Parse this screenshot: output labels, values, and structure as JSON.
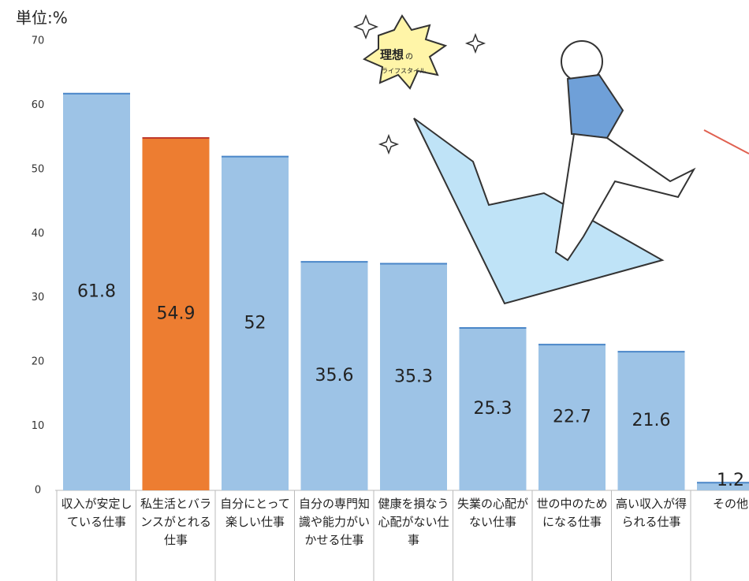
{
  "chart_data": {
    "type": "bar",
    "unit_label": "単位:%",
    "categories": [
      "収入が安定している仕事",
      "私生活とバランスがとれる仕事",
      "自分にとって楽しい仕事",
      "自分の専門知識や能力がいかせる仕事",
      "健康を損なう心配がない仕事",
      "失業の心配がない仕事",
      "世の中のためになる仕事",
      "高い収入が得られる仕事",
      "その他"
    ],
    "values": [
      61.8,
      54.9,
      52,
      35.6,
      35.3,
      25.3,
      22.7,
      21.6,
      1.2
    ],
    "colors": [
      "#9dc3e6",
      "#ed7d31",
      "#9dc3e6",
      "#9dc3e6",
      "#9dc3e6",
      "#9dc3e6",
      "#9dc3e6",
      "#9dc3e6",
      "#9dc3e6"
    ],
    "ylim": [
      0,
      70
    ],
    "yticks": [
      0,
      10,
      20,
      30,
      40,
      50,
      60,
      70
    ],
    "grid": false,
    "annotations": [
      "理想",
      "の",
      "ライフスタイル"
    ]
  }
}
